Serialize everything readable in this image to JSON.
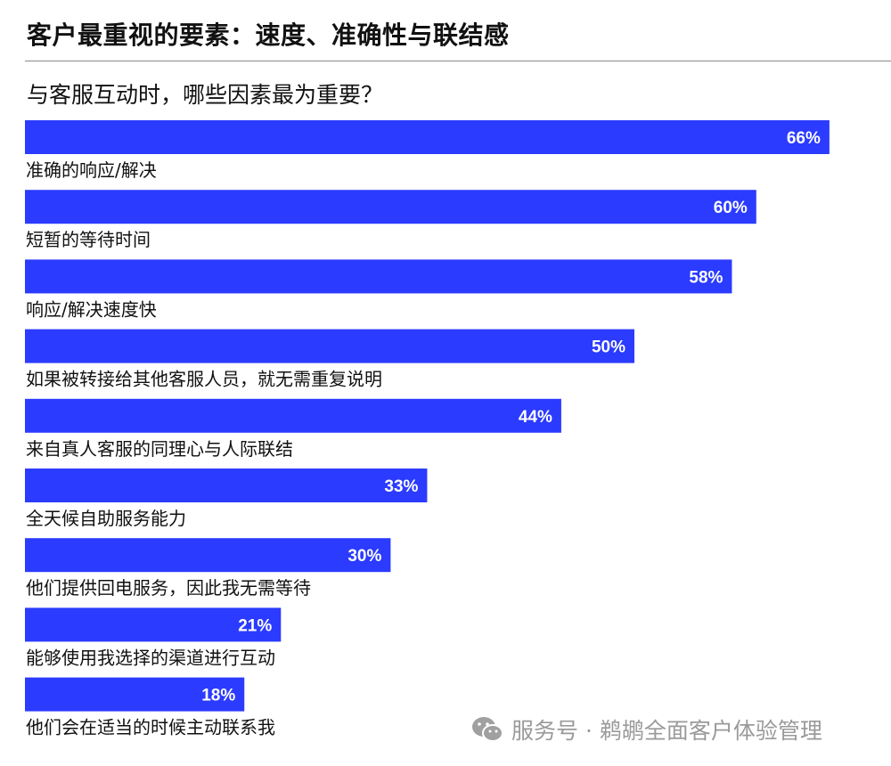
{
  "title": "客户最重视的要素：速度、准确性与联结感",
  "subtitle": "与客服互动时，哪些因素最为重要？",
  "watermark": "服务号 · 鹈鹕全面客户体验管理",
  "colors": {
    "bar": "#2b3bff",
    "bar_text": "#ffffff",
    "text": "#111111",
    "rule": "#8a8a8a",
    "watermark": "#9a9a9a"
  },
  "chart_data": {
    "type": "bar",
    "orientation": "horizontal",
    "categories": [
      "准确的响应/解决",
      "短暂的等待时间",
      "响应/解决速度快",
      "如果被转接给其他客服人员，就无需重复说明",
      "来自真人客服的同理心与人际联结",
      "全天候自助服务能力",
      "他们提供回电服务，因此我无需等待",
      "能够使用我选择的渠道进行互动",
      "他们会在适当的时候主动联系我"
    ],
    "values": [
      66,
      60,
      58,
      50,
      44,
      33,
      30,
      21,
      18
    ],
    "value_labels": [
      "66%",
      "60%",
      "58%",
      "50%",
      "44%",
      "33%",
      "30%",
      "21%",
      "18%"
    ],
    "unit": "%",
    "xlim": [
      0,
      100
    ],
    "grid": false
  }
}
